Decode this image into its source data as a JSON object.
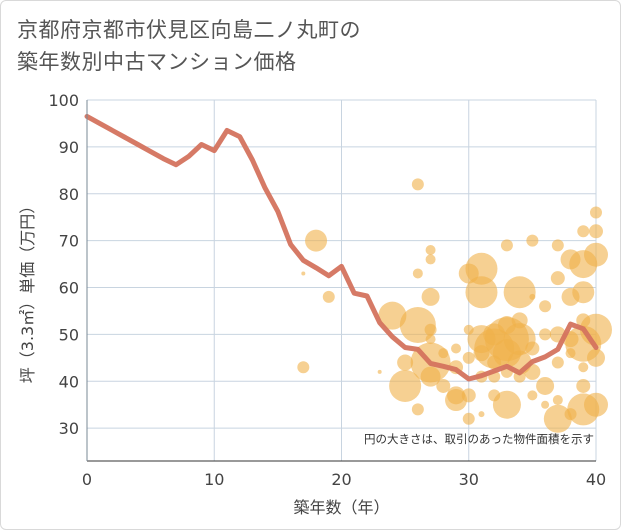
{
  "title_line1": "京都府京都市伏見区向島二ノ丸町の",
  "title_line2": "築年数別中古マンション価格",
  "chart_data": {
    "type": "scatter",
    "title": "京都府京都市伏見区向島二ノ丸町の築年数別中古マンション価格",
    "xlabel": "築年数（年）",
    "ylabel": "坪（3.3㎡）単価（万円）",
    "xlim": [
      0,
      40
    ],
    "ylim": [
      23,
      100
    ],
    "xticks": [
      0,
      10,
      20,
      30,
      40
    ],
    "yticks": [
      30,
      40,
      50,
      60,
      70,
      80,
      90,
      100
    ],
    "grid": true,
    "annotation": "円の大きさは、取引のあった物件面積を示す",
    "colors": {
      "line": "#d4735e",
      "bubble": "#f0b14a",
      "grid": "#c8d4e0",
      "frame": "#d9d9d9"
    },
    "line_series": {
      "x": [
        0,
        1,
        2,
        3,
        4,
        5,
        6,
        7,
        8,
        9,
        10,
        11,
        12,
        13,
        14,
        15,
        16,
        17,
        18,
        19,
        20,
        21,
        22,
        23,
        24,
        25,
        26,
        27,
        28,
        29,
        30,
        31,
        32,
        33,
        34,
        35,
        36,
        37,
        38,
        39,
        40
      ],
      "y": [
        96.5,
        95,
        93.5,
        92,
        90.5,
        89,
        87.5,
        86.2,
        88,
        90.5,
        89.2,
        93.5,
        92.2,
        87.2,
        81.2,
        76.2,
        69.2,
        65.8,
        64.2,
        62.5,
        64.5,
        58.8,
        58.2,
        52.5,
        49.5,
        47.2,
        46.8,
        43.8,
        43.2,
        42.5,
        40.5,
        41.2,
        42.2,
        43.2,
        41.8,
        44.2,
        45.2,
        46.8,
        52.2,
        51.2,
        47.2
      ]
    },
    "bubbles": [
      {
        "x": 17,
        "y": 63,
        "s": 2
      },
      {
        "x": 17,
        "y": 43,
        "s": 6
      },
      {
        "x": 18,
        "y": 70,
        "s": 11
      },
      {
        "x": 19,
        "y": 58,
        "s": 6
      },
      {
        "x": 23,
        "y": 42,
        "s": 2
      },
      {
        "x": 24,
        "y": 54,
        "s": 14
      },
      {
        "x": 25,
        "y": 39,
        "s": 16
      },
      {
        "x": 25,
        "y": 44,
        "s": 8
      },
      {
        "x": 26,
        "y": 82,
        "s": 6
      },
      {
        "x": 26,
        "y": 63,
        "s": 5
      },
      {
        "x": 26,
        "y": 52,
        "s": 18
      },
      {
        "x": 26,
        "y": 34,
        "s": 6
      },
      {
        "x": 27,
        "y": 68,
        "s": 5
      },
      {
        "x": 27,
        "y": 66,
        "s": 5
      },
      {
        "x": 27,
        "y": 58,
        "s": 9
      },
      {
        "x": 27,
        "y": 51,
        "s": 6
      },
      {
        "x": 27,
        "y": 49,
        "s": 5
      },
      {
        "x": 27,
        "y": 44,
        "s": 20
      },
      {
        "x": 27,
        "y": 41,
        "s": 10
      },
      {
        "x": 28,
        "y": 46,
        "s": 5
      },
      {
        "x": 28,
        "y": 39,
        "s": 7
      },
      {
        "x": 29,
        "y": 47,
        "s": 5
      },
      {
        "x": 29,
        "y": 43,
        "s": 7
      },
      {
        "x": 29,
        "y": 37,
        "s": 9
      },
      {
        "x": 29,
        "y": 36,
        "s": 11
      },
      {
        "x": 30,
        "y": 51,
        "s": 5
      },
      {
        "x": 30,
        "y": 45,
        "s": 6
      },
      {
        "x": 30,
        "y": 37,
        "s": 7
      },
      {
        "x": 30,
        "y": 32,
        "s": 6
      },
      {
        "x": 30,
        "y": 63,
        "s": 10
      },
      {
        "x": 31,
        "y": 64,
        "s": 16
      },
      {
        "x": 31,
        "y": 59,
        "s": 16
      },
      {
        "x": 31,
        "y": 49,
        "s": 14
      },
      {
        "x": 31,
        "y": 46,
        "s": 8
      },
      {
        "x": 31,
        "y": 41,
        "s": 6
      },
      {
        "x": 31,
        "y": 33,
        "s": 3
      },
      {
        "x": 32,
        "y": 50,
        "s": 11
      },
      {
        "x": 32,
        "y": 47,
        "s": 20
      },
      {
        "x": 32,
        "y": 44,
        "s": 7
      },
      {
        "x": 32,
        "y": 41,
        "s": 6
      },
      {
        "x": 32,
        "y": 37,
        "s": 6
      },
      {
        "x": 33,
        "y": 69,
        "s": 6
      },
      {
        "x": 33,
        "y": 52,
        "s": 9
      },
      {
        "x": 33,
        "y": 49,
        "s": 22
      },
      {
        "x": 33,
        "y": 46,
        "s": 14
      },
      {
        "x": 33,
        "y": 42,
        "s": 6
      },
      {
        "x": 33,
        "y": 35,
        "s": 14
      },
      {
        "x": 34,
        "y": 59,
        "s": 16
      },
      {
        "x": 34,
        "y": 53,
        "s": 8
      },
      {
        "x": 34,
        "y": 49,
        "s": 16
      },
      {
        "x": 34,
        "y": 44,
        "s": 12
      },
      {
        "x": 34,
        "y": 41,
        "s": 6
      },
      {
        "x": 35,
        "y": 70,
        "s": 6
      },
      {
        "x": 35,
        "y": 58,
        "s": 3
      },
      {
        "x": 35,
        "y": 47,
        "s": 7
      },
      {
        "x": 35,
        "y": 42,
        "s": 8
      },
      {
        "x": 35,
        "y": 37,
        "s": 5
      },
      {
        "x": 36,
        "y": 56,
        "s": 6
      },
      {
        "x": 36,
        "y": 50,
        "s": 6
      },
      {
        "x": 36,
        "y": 39,
        "s": 9
      },
      {
        "x": 36,
        "y": 35,
        "s": 4
      },
      {
        "x": 37,
        "y": 69,
        "s": 6
      },
      {
        "x": 37,
        "y": 62,
        "s": 7
      },
      {
        "x": 37,
        "y": 50,
        "s": 8
      },
      {
        "x": 37,
        "y": 44,
        "s": 6
      },
      {
        "x": 37,
        "y": 36,
        "s": 5
      },
      {
        "x": 37,
        "y": 32,
        "s": 14
      },
      {
        "x": 38,
        "y": 66,
        "s": 10
      },
      {
        "x": 38,
        "y": 58,
        "s": 9
      },
      {
        "x": 38,
        "y": 49,
        "s": 8
      },
      {
        "x": 38,
        "y": 46,
        "s": 5
      },
      {
        "x": 38,
        "y": 33,
        "s": 6
      },
      {
        "x": 39,
        "y": 72,
        "s": 6
      },
      {
        "x": 39,
        "y": 65,
        "s": 14
      },
      {
        "x": 39,
        "y": 59,
        "s": 11
      },
      {
        "x": 39,
        "y": 53,
        "s": 7
      },
      {
        "x": 39,
        "y": 48,
        "s": 18
      },
      {
        "x": 39,
        "y": 43,
        "s": 5
      },
      {
        "x": 39,
        "y": 39,
        "s": 7
      },
      {
        "x": 39,
        "y": 34,
        "s": 16
      },
      {
        "x": 40,
        "y": 76,
        "s": 6
      },
      {
        "x": 40,
        "y": 72,
        "s": 7
      },
      {
        "x": 40,
        "y": 67,
        "s": 12
      },
      {
        "x": 40,
        "y": 51,
        "s": 16
      },
      {
        "x": 40,
        "y": 45,
        "s": 9
      },
      {
        "x": 40,
        "y": 35,
        "s": 12
      }
    ]
  }
}
